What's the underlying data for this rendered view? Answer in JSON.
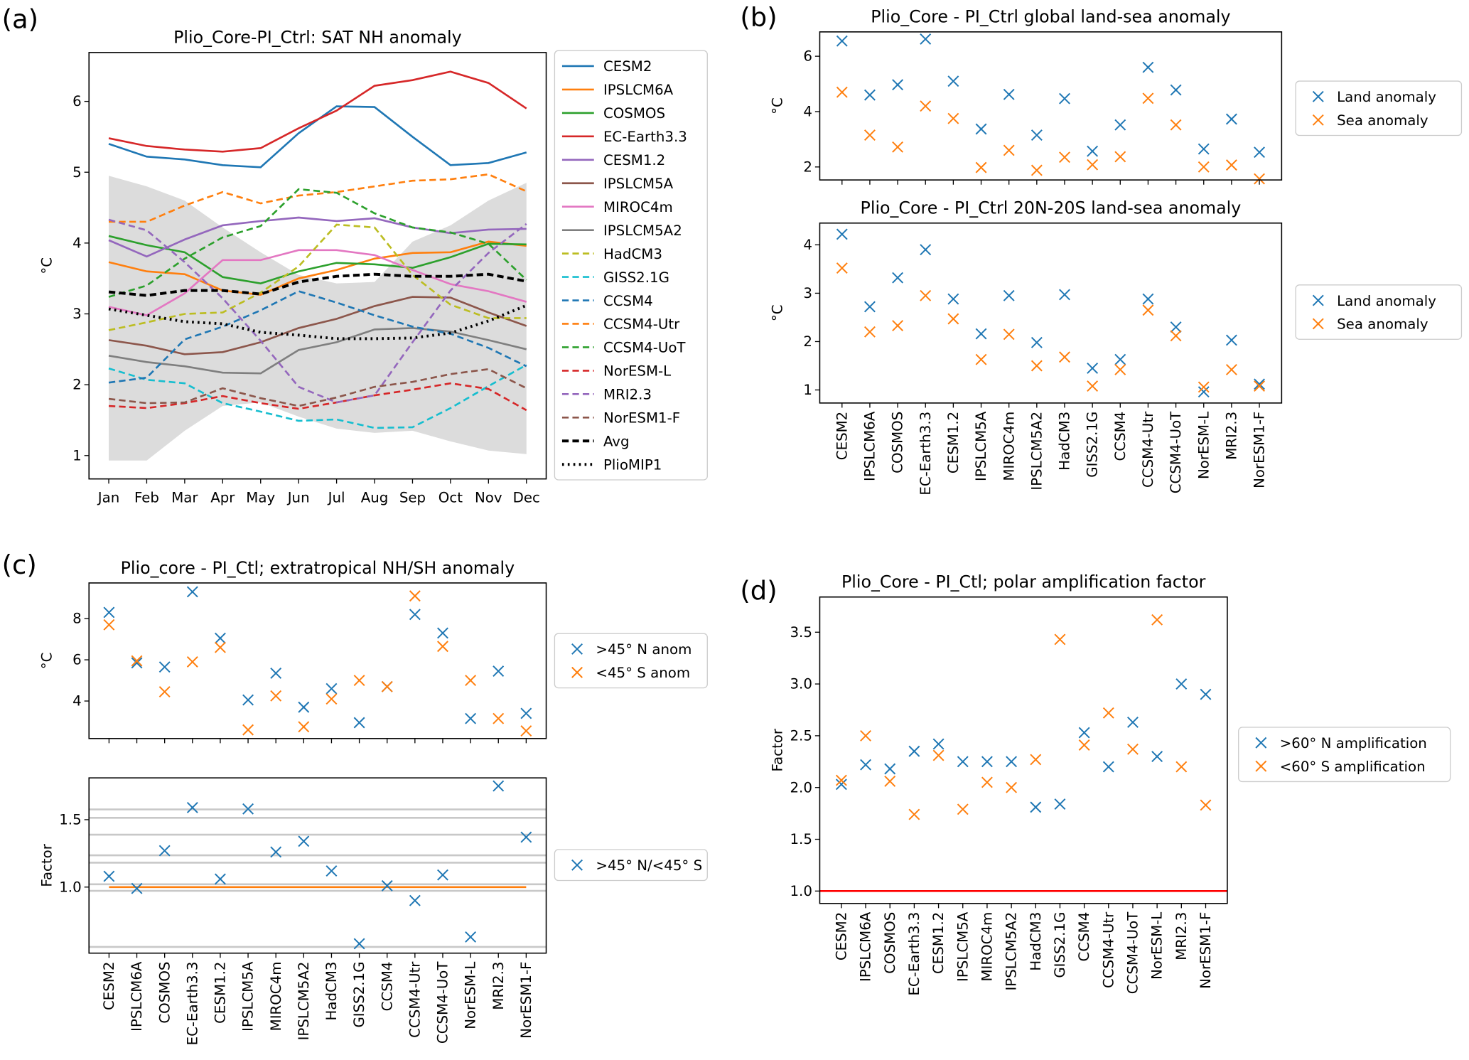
{
  "chart_data": [
    {
      "type": "line",
      "panel_label": "(a)",
      "title": "Plio_Core-PI_Ctrl: SAT NH anomaly",
      "ylabel": "°C",
      "categories": [
        "Jan",
        "Feb",
        "Mar",
        "Apr",
        "May",
        "Jun",
        "Jul",
        "Aug",
        "Sep",
        "Oct",
        "Nov",
        "Dec"
      ],
      "ylim": [
        0.67,
        6.69
      ],
      "yticks": [
        1,
        2,
        3,
        4,
        5,
        6
      ],
      "legend": "outside-right",
      "band": {
        "color": "#dcdcdc",
        "lower": [
          0.93,
          0.93,
          1.35,
          1.7,
          1.75,
          1.55,
          1.38,
          1.32,
          1.35,
          1.2,
          1.07,
          1.02
        ],
        "upper": [
          4.95,
          4.8,
          4.6,
          4.22,
          3.87,
          3.55,
          3.43,
          3.45,
          4.02,
          4.25,
          4.6,
          4.85
        ]
      },
      "series": [
        {
          "name": "CESM2",
          "color": "#1f77b4",
          "dash": "solid",
          "values": [
            5.4,
            5.22,
            5.18,
            5.1,
            5.07,
            5.55,
            5.93,
            5.92,
            5.5,
            5.1,
            5.13,
            5.28
          ]
        },
        {
          "name": "IPSLCM6A",
          "color": "#ff7f0e",
          "dash": "solid",
          "values": [
            3.73,
            3.6,
            3.56,
            3.33,
            3.27,
            3.5,
            3.62,
            3.78,
            3.86,
            3.87,
            4.02,
            3.96
          ]
        },
        {
          "name": "COSMOS",
          "color": "#2ca02c",
          "dash": "solid",
          "values": [
            4.1,
            3.97,
            3.87,
            3.52,
            3.43,
            3.6,
            3.72,
            3.7,
            3.65,
            3.8,
            3.99,
            3.98
          ]
        },
        {
          "name": "EC-Earth3.3",
          "color": "#d62728",
          "dash": "solid",
          "values": [
            5.48,
            5.37,
            5.32,
            5.29,
            5.34,
            5.62,
            5.87,
            6.22,
            6.3,
            6.42,
            6.26,
            5.9
          ]
        },
        {
          "name": "CESM1.2",
          "color": "#9467bd",
          "dash": "solid",
          "values": [
            4.04,
            3.81,
            4.05,
            4.25,
            4.31,
            4.36,
            4.31,
            4.35,
            4.22,
            4.14,
            4.19,
            4.2
          ]
        },
        {
          "name": "IPSLCM5A",
          "color": "#8c564b",
          "dash": "solid",
          "values": [
            2.63,
            2.55,
            2.43,
            2.46,
            2.6,
            2.8,
            2.93,
            3.11,
            3.24,
            3.23,
            3.02,
            2.83
          ]
        },
        {
          "name": "MIROC4m",
          "color": "#e377c2",
          "dash": "solid",
          "values": [
            3.1,
            2.98,
            3.29,
            3.76,
            3.76,
            3.9,
            3.9,
            3.83,
            3.62,
            3.42,
            3.32,
            3.17
          ]
        },
        {
          "name": "IPSLCM5A2",
          "color": "#7f7f7f",
          "dash": "solid",
          "values": [
            2.41,
            2.32,
            2.26,
            2.17,
            2.16,
            2.49,
            2.6,
            2.78,
            2.8,
            2.75,
            2.63,
            2.5
          ]
        },
        {
          "name": "HadCM3",
          "color": "#bcbd22",
          "dash": "dashed",
          "values": [
            2.77,
            2.88,
            3.0,
            3.02,
            3.3,
            3.67,
            4.26,
            4.22,
            3.55,
            3.13,
            2.94,
            2.94
          ]
        },
        {
          "name": "GISS2.1G",
          "color": "#17becf",
          "dash": "dashed",
          "values": [
            2.23,
            2.07,
            2.02,
            1.74,
            1.62,
            1.49,
            1.51,
            1.39,
            1.4,
            1.67,
            1.98,
            2.28
          ]
        },
        {
          "name": "CCSM4",
          "color": "#1f77b4",
          "dash": "dashed",
          "values": [
            2.03,
            2.1,
            2.64,
            2.82,
            3.05,
            3.32,
            3.16,
            2.98,
            2.82,
            2.72,
            2.52,
            2.26
          ]
        },
        {
          "name": "CCSM4-Utr",
          "color": "#ff7f0e",
          "dash": "dashed",
          "values": [
            4.3,
            4.3,
            4.53,
            4.72,
            4.56,
            4.67,
            4.72,
            4.8,
            4.88,
            4.9,
            4.97,
            4.73
          ]
        },
        {
          "name": "CCSM4-UoT",
          "color": "#2ca02c",
          "dash": "dashed",
          "values": [
            3.24,
            3.4,
            3.78,
            4.08,
            4.24,
            4.76,
            4.71,
            4.42,
            4.22,
            4.15,
            3.99,
            3.48
          ]
        },
        {
          "name": "NorESM-L",
          "color": "#d62728",
          "dash": "dashed",
          "values": [
            1.7,
            1.67,
            1.74,
            1.84,
            1.74,
            1.66,
            1.75,
            1.85,
            1.93,
            2.02,
            1.94,
            1.64
          ]
        },
        {
          "name": "MRI2.3",
          "color": "#9467bd",
          "dash": "dashed",
          "values": [
            4.33,
            4.18,
            3.73,
            3.22,
            2.62,
            1.97,
            1.75,
            1.85,
            2.6,
            3.33,
            3.86,
            4.27
          ]
        },
        {
          "name": "NorESM1-F",
          "color": "#8c564b",
          "dash": "dashed",
          "values": [
            1.8,
            1.74,
            1.75,
            1.95,
            1.81,
            1.7,
            1.82,
            1.97,
            2.04,
            2.15,
            2.22,
            1.95
          ]
        },
        {
          "name": "Avg",
          "color": "#000000",
          "dash": "dashed",
          "linewidth": 3,
          "values": [
            3.31,
            3.26,
            3.33,
            3.33,
            3.28,
            3.45,
            3.53,
            3.56,
            3.53,
            3.53,
            3.56,
            3.46
          ]
        },
        {
          "name": "PlioMIP1",
          "color": "#000000",
          "dash": "dotted",
          "linewidth": 3,
          "values": [
            3.07,
            2.98,
            2.89,
            2.86,
            2.74,
            2.7,
            2.65,
            2.65,
            2.66,
            2.73,
            2.9,
            3.12
          ]
        }
      ]
    },
    {
      "type": "scatter",
      "panel_label": "(b)",
      "title": "Plio_Core - PI_Ctrl global land-sea anomaly",
      "ylabel": "°C",
      "ylim": [
        1.53,
        6.88
      ],
      "yticks": [
        2,
        4,
        6
      ],
      "legend": "outside-right",
      "series": [
        {
          "name": "Land anomaly",
          "color": "#1f77b4",
          "values": [
            6.55,
            4.6,
            4.97,
            6.62,
            5.1,
            3.37,
            4.62,
            3.15,
            4.47,
            2.57,
            3.52,
            5.6,
            4.78,
            2.65,
            3.73,
            2.53
          ]
        },
        {
          "name": "Sea anomaly",
          "color": "#ff7f0e",
          "values": [
            4.7,
            3.15,
            2.72,
            4.2,
            3.75,
            1.98,
            2.6,
            1.88,
            2.35,
            2.08,
            2.37,
            4.48,
            3.52,
            2.0,
            2.07,
            1.57
          ]
        }
      ]
    },
    {
      "type": "scatter",
      "title": "Plio_Core - PI_Ctrl 20N-20S land-sea anomaly",
      "ylabel": "°C",
      "categories": [
        "CESM2",
        "IPSLCM6A",
        "COSMOS",
        "EC-Earth3.3",
        "CESM1.2",
        "IPSLCM5A",
        "MIROC4m",
        "IPSLCM5A2",
        "HadCM3",
        "GISS2.1G",
        "CCSM4",
        "CCSM4-Utr",
        "CCSM4-UoT",
        "NorESM-L",
        "MRI2.3",
        "NorESM1-F"
      ],
      "ylim": [
        0.73,
        4.45
      ],
      "yticks": [
        1,
        2,
        3,
        4
      ],
      "legend": "outside-right",
      "series": [
        {
          "name": "Land anomaly",
          "color": "#1f77b4",
          "values": [
            4.22,
            2.72,
            3.32,
            3.9,
            2.88,
            2.16,
            2.95,
            1.98,
            2.97,
            1.45,
            1.63,
            2.88,
            2.3,
            0.96,
            2.03,
            1.12
          ]
        },
        {
          "name": "Sea anomaly",
          "color": "#ff7f0e",
          "values": [
            3.52,
            2.2,
            2.33,
            2.95,
            2.47,
            1.63,
            2.15,
            1.5,
            1.68,
            1.08,
            1.42,
            2.65,
            2.12,
            1.06,
            1.42,
            1.08
          ]
        }
      ]
    },
    {
      "type": "scatter",
      "panel_label": "(c)",
      "title": "Plio_core - PI_Ctl; extratropical NH/SH anomaly",
      "ylabel": "°C",
      "ylim": [
        2.18,
        9.73
      ],
      "yticks": [
        4,
        6,
        8
      ],
      "legend": "outside-right",
      "series": [
        {
          "name": ">45° N anom",
          "color": "#1f77b4",
          "values": [
            8.3,
            5.85,
            5.65,
            9.3,
            7.05,
            4.05,
            5.35,
            3.7,
            4.6,
            2.95,
            4.7,
            8.2,
            7.3,
            3.15,
            5.45,
            3.4
          ]
        },
        {
          "name": "<45° S anom",
          "color": "#ff7f0e",
          "values": [
            7.7,
            5.95,
            4.45,
            5.9,
            6.6,
            2.6,
            4.25,
            2.75,
            4.1,
            5.0,
            4.7,
            9.1,
            6.65,
            5.0,
            3.15,
            2.55
          ]
        }
      ]
    },
    {
      "type": "scatter",
      "ylabel": "Factor",
      "categories": [
        "CESM2",
        "IPSLCM6A",
        "COSMOS",
        "EC-Earth3.3",
        "CESM1.2",
        "IPSLCM5A",
        "MIROC4m",
        "IPSLCM5A2",
        "HadCM3",
        "GISS2.1G",
        "CCSM4",
        "CCSM4-Utr",
        "CCSM4-UoT",
        "NorESM-L",
        "MRI2.3",
        "NorESM1-F"
      ],
      "ylim": [
        0.51,
        1.81
      ],
      "yticks": [
        {
          "value": 1,
          "label": "1.0"
        },
        1.5
      ],
      "legend": "outside-right",
      "hlines": {
        "color": "#c8c8c8",
        "values": [
          1.576,
          1.514,
          1.389,
          1.236,
          1.181,
          1.021,
          0.972,
          0.556
        ]
      },
      "reference_line": {
        "value": 1,
        "color": "#ff7f0e",
        "extent": "points"
      },
      "series": [
        {
          "name": ">45° N/<45° S",
          "color": "#1f77b4",
          "values": [
            1.08,
            0.99,
            1.27,
            1.59,
            1.06,
            1.58,
            1.26,
            1.34,
            1.12,
            0.58,
            1.01,
            0.9,
            1.09,
            0.63,
            1.75,
            1.37
          ]
        }
      ]
    },
    {
      "type": "scatter",
      "panel_label": "(d)",
      "title": "Plio_Core - PI_Ctl; polar amplification factor",
      "ylabel": "Factor",
      "categories": [
        "CESM2",
        "IPSLCM6A",
        "COSMOS",
        "EC-Earth3.3",
        "CESM1.2",
        "IPSLCM5A",
        "MIROC4m",
        "IPSLCM5A2",
        "HadCM3",
        "GISS2.1G",
        "CCSM4",
        "CCSM4-Utr",
        "CCSM4-UoT",
        "NorESM-L",
        "MRI2.3",
        "NorESM1-F"
      ],
      "ylim": [
        0.88,
        3.84
      ],
      "yticks": [
        {
          "value": 1,
          "label": "1.0"
        },
        1.5,
        {
          "value": 2,
          "label": "2.0"
        },
        2.5,
        {
          "value": 3,
          "label": "3.0"
        },
        3.5
      ],
      "legend": "outside-right",
      "reference_line": {
        "value": 1,
        "color": "#ff0000",
        "extent": "axes"
      },
      "series": [
        {
          "name": ">60° N amplification",
          "color": "#1f77b4",
          "values": [
            2.03,
            2.22,
            2.18,
            2.35,
            2.42,
            2.25,
            2.25,
            2.25,
            1.81,
            1.84,
            2.53,
            2.2,
            2.63,
            2.3,
            3.0,
            2.9
          ]
        },
        {
          "name": "<60° S amplification",
          "color": "#ff7f0e",
          "values": [
            2.07,
            2.5,
            2.06,
            1.74,
            2.31,
            1.79,
            2.05,
            2.0,
            2.27,
            3.43,
            2.41,
            2.72,
            2.37,
            3.62,
            2.2,
            1.83
          ]
        }
      ]
    }
  ]
}
